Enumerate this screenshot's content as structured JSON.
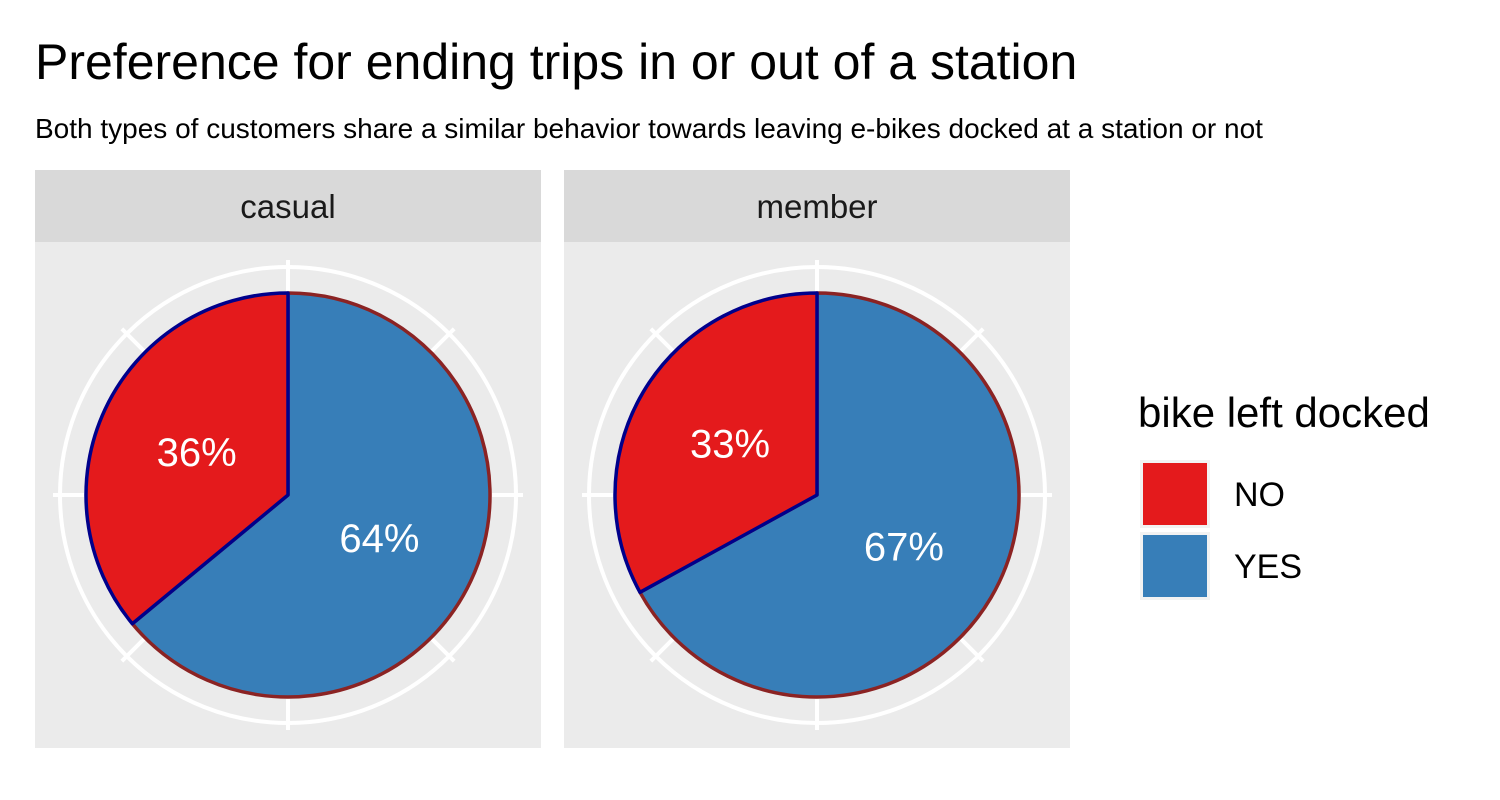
{
  "title": "Preference for ending trips in or out of a station",
  "subtitle": "Both types of customers share a similar behavior towards leaving e-bikes docked at a station or not",
  "colors": {
    "NO": "#e41a1c",
    "YES": "#377eb8",
    "panel_bg": "#ebebeb",
    "strip_bg": "#d9d9d9",
    "outline_NO": "#00008b",
    "outline_YES": "#8b2323",
    "grid": "#ffffff"
  },
  "legend": {
    "title": "bike left docked",
    "items": [
      {
        "label": "NO",
        "color": "#e41a1c"
      },
      {
        "label": "YES",
        "color": "#377eb8"
      }
    ]
  },
  "chart_data": {
    "type": "pie",
    "facets": [
      {
        "name": "casual",
        "slices": [
          {
            "label": "NO",
            "value": 36,
            "text": "36%"
          },
          {
            "label": "YES",
            "value": 64,
            "text": "64%"
          }
        ]
      },
      {
        "name": "member",
        "slices": [
          {
            "label": "NO",
            "value": 33,
            "text": "33%"
          },
          {
            "label": "YES",
            "value": 67,
            "text": "67%"
          }
        ]
      }
    ],
    "legend_position": "right",
    "grid": true
  }
}
